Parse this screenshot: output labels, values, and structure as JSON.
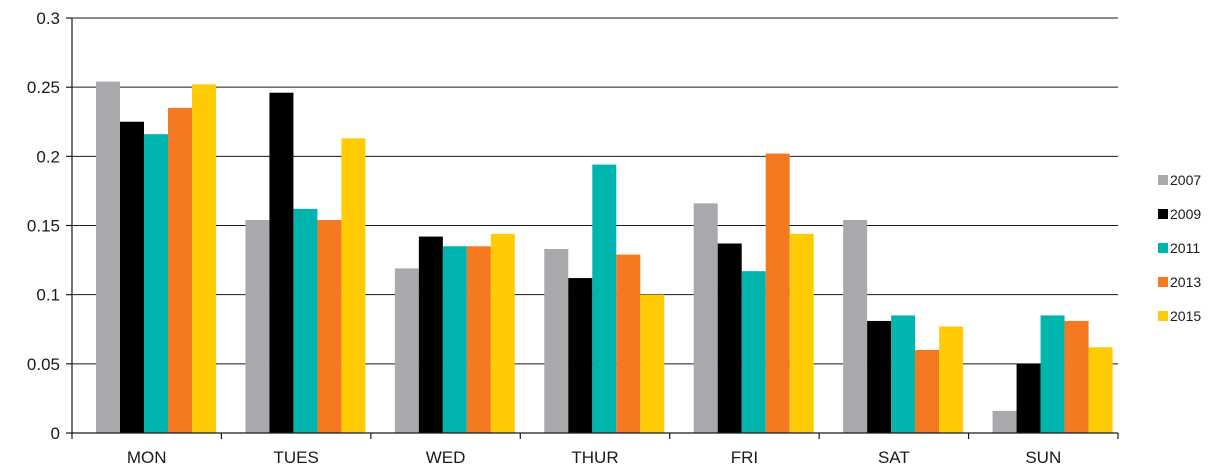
{
  "chart_data": {
    "type": "bar",
    "title": "",
    "xlabel": "",
    "ylabel": "",
    "categories": [
      "MON",
      "TUES",
      "WED",
      "THUR",
      "FRI",
      "SAT",
      "SUN"
    ],
    "ylim": [
      0,
      0.3
    ],
    "yticks": [
      0,
      0.05,
      0.1,
      0.15,
      0.2,
      0.25,
      0.3
    ],
    "ytick_labels": [
      "0",
      "0.05",
      "0.1",
      "0.15",
      "0.2",
      "0.25",
      "0.3"
    ],
    "grid": true,
    "legend_position": "right",
    "series": [
      {
        "name": "2007",
        "color": "#a7a9ac",
        "values": [
          0.254,
          0.154,
          0.119,
          0.133,
          0.166,
          0.154,
          0.016
        ]
      },
      {
        "name": "2009",
        "color": "#000000",
        "values": [
          0.225,
          0.246,
          0.142,
          0.112,
          0.137,
          0.081,
          0.05
        ]
      },
      {
        "name": "2011",
        "color": "#00b5ad",
        "values": [
          0.216,
          0.162,
          0.135,
          0.194,
          0.117,
          0.085,
          0.085
        ]
      },
      {
        "name": "2013",
        "color": "#f47920",
        "values": [
          0.235,
          0.154,
          0.135,
          0.129,
          0.202,
          0.06,
          0.081
        ]
      },
      {
        "name": "2015",
        "color": "#ffcb05",
        "values": [
          0.252,
          0.213,
          0.144,
          0.1,
          0.144,
          0.077,
          0.062
        ]
      }
    ]
  }
}
